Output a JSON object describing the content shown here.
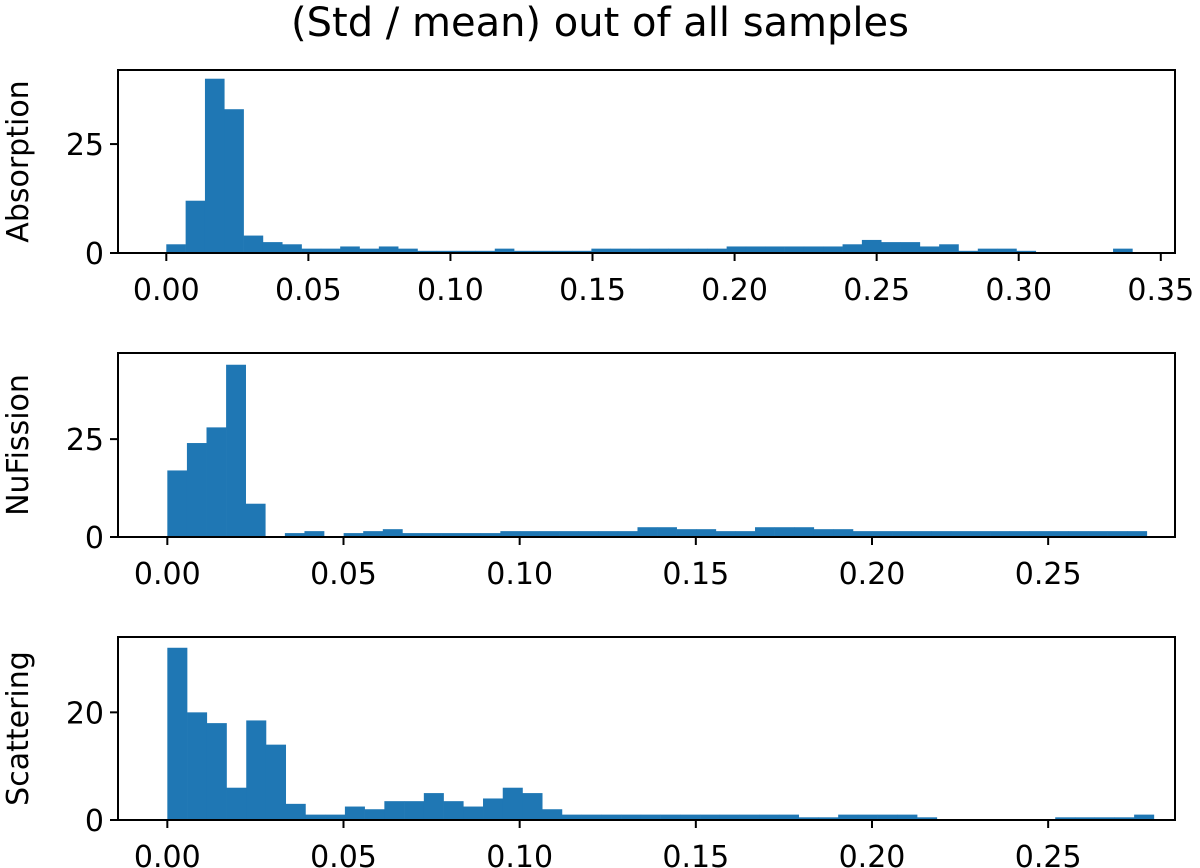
{
  "title": "(Std / mean) out of all samples",
  "bar_color": "#1f77b4",
  "chart_data": [
    {
      "type": "bar",
      "ylabel": "Absorption",
      "xlabel": "",
      "xlim": [
        -0.017,
        0.355
      ],
      "ylim": [
        0,
        42
      ],
      "xticks": [
        0.0,
        0.05,
        0.1,
        0.15,
        0.2,
        0.25,
        0.3,
        0.35
      ],
      "xtick_labels": [
        "0.00",
        "0.05",
        "0.10",
        "0.15",
        "0.20",
        "0.25",
        "0.30",
        "0.35"
      ],
      "yticks": [
        0,
        25
      ],
      "ytick_labels": [
        "0",
        "25"
      ],
      "bin_start": 0.0,
      "bin_width": 0.0068,
      "values": [
        2,
        12,
        40,
        33,
        4,
        2.5,
        2,
        1,
        1,
        1.5,
        1,
        1.5,
        1,
        0.5,
        0.5,
        0.5,
        0.5,
        1,
        0.5,
        0.5,
        0.5,
        0.5,
        1,
        1,
        1,
        1,
        1,
        1,
        1,
        1.5,
        1.5,
        1.5,
        1.5,
        1.5,
        1.5,
        2,
        3,
        2.5,
        2.5,
        1.5,
        2,
        0.5,
        1,
        1,
        0.5,
        0,
        0,
        0,
        0,
        1
      ]
    },
    {
      "type": "bar",
      "ylabel": "NuFission",
      "xlabel": "",
      "xlim": [
        -0.014,
        0.286
      ],
      "ylim": [
        0,
        47
      ],
      "xticks": [
        0.0,
        0.05,
        0.1,
        0.15,
        0.2,
        0.25
      ],
      "xtick_labels": [
        "0.00",
        "0.05",
        "0.10",
        "0.15",
        "0.20",
        "0.25"
      ],
      "yticks": [
        0,
        25
      ],
      "ytick_labels": [
        "0",
        "25"
      ],
      "bin_start": 0.0,
      "bin_width": 0.00556,
      "values": [
        17,
        24,
        28,
        44,
        8.5,
        0,
        1,
        1.5,
        0,
        1,
        1.5,
        2,
        1,
        1,
        1,
        1,
        1,
        1.5,
        1.5,
        1.5,
        1.5,
        1.5,
        1.5,
        1.5,
        2.5,
        2.5,
        2,
        2,
        1.5,
        1.5,
        2.5,
        2.5,
        2.5,
        2,
        2,
        1.5,
        1.5,
        1.5,
        1.5,
        1.5,
        1.5,
        1.5,
        1.5,
        1.5,
        1.5,
        1.5,
        1.5,
        1.5,
        1.5,
        1.5
      ]
    },
    {
      "type": "bar",
      "ylabel": "Scattering",
      "xlabel": "",
      "xlim": [
        -0.014,
        0.286
      ],
      "ylim": [
        0,
        34
      ],
      "xticks": [
        0.0,
        0.05,
        0.1,
        0.15,
        0.2,
        0.25
      ],
      "xtick_labels": [
        "0.00",
        "0.05",
        "0.10",
        "0.15",
        "0.20",
        "0.25"
      ],
      "yticks": [
        0,
        20
      ],
      "ytick_labels": [
        "0",
        "20"
      ],
      "bin_start": 0.0,
      "bin_width": 0.0056,
      "values": [
        32,
        20,
        18,
        6,
        18.5,
        14,
        3,
        1,
        1,
        2.5,
        2,
        3.5,
        3.5,
        5,
        3.5,
        2.5,
        4,
        6,
        5,
        2,
        1,
        1,
        1,
        1,
        1,
        1,
        1,
        1,
        1,
        1,
        1,
        1,
        0.5,
        0.5,
        1,
        1,
        1,
        1,
        0.5,
        0,
        0,
        0,
        0,
        0,
        0,
        0.5,
        0.5,
        0.5,
        0.5,
        1
      ]
    }
  ]
}
